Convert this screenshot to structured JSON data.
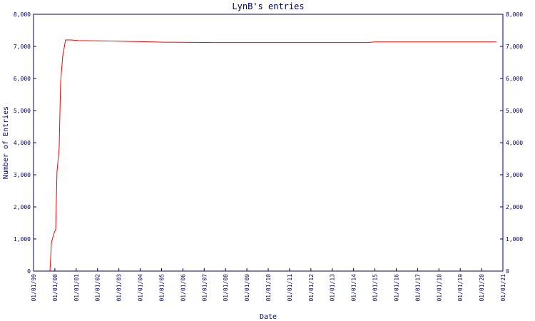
{
  "chart_data": {
    "type": "line",
    "title": "LynB's entries",
    "x_label": "Date",
    "y_label": "Number of Entries",
    "x": [
      1999.77,
      1999.84,
      1999.97,
      2000.04,
      2000.1,
      2000.2,
      2000.27,
      2000.37,
      2000.5,
      2000.77,
      2001.1,
      2002.45,
      2003.8,
      2005.1,
      2007.5,
      2014.65,
      2015.0,
      2020.7
    ],
    "values": [
      0,
      900,
      1200,
      1300,
      3100,
      3800,
      5900,
      6700,
      7200,
      7200,
      7180,
      7170,
      7150,
      7130,
      7120,
      7120,
      7140,
      7140
    ],
    "color": "#ff0000",
    "xlim": [
      1999,
      2021
    ],
    "xticks": [
      {
        "value": 1999,
        "label": "01/01/99"
      },
      {
        "value": 2000,
        "label": "01/01/00"
      },
      {
        "value": 2001,
        "label": "01/01/01"
      },
      {
        "value": 2002,
        "label": "01/01/02"
      },
      {
        "value": 2003,
        "label": "01/01/03"
      },
      {
        "value": 2004,
        "label": "01/01/04"
      },
      {
        "value": 2005,
        "label": "01/01/05"
      },
      {
        "value": 2006,
        "label": "01/01/06"
      },
      {
        "value": 2007,
        "label": "01/01/07"
      },
      {
        "value": 2008,
        "label": "01/01/08"
      },
      {
        "value": 2009,
        "label": "01/01/09"
      },
      {
        "value": 2010,
        "label": "01/01/10"
      },
      {
        "value": 2011,
        "label": "01/01/11"
      },
      {
        "value": 2012,
        "label": "01/01/12"
      },
      {
        "value": 2013,
        "label": "01/01/13"
      },
      {
        "value": 2014,
        "label": "01/01/14"
      },
      {
        "value": 2015,
        "label": "01/01/15"
      },
      {
        "value": 2016,
        "label": "01/01/16"
      },
      {
        "value": 2017,
        "label": "01/01/17"
      },
      {
        "value": 2018,
        "label": "01/01/18"
      },
      {
        "value": 2019,
        "label": "01/01/19"
      },
      {
        "value": 2020,
        "label": "01/01/20"
      },
      {
        "value": 2021,
        "label": "01/01/21"
      }
    ],
    "ylim": [
      0,
      8000
    ],
    "yticks": [
      0,
      {
        "value": 1000,
        "label": "1,000"
      },
      {
        "value": 2000,
        "label": "2,000"
      },
      {
        "value": 3000,
        "label": "3,000"
      },
      {
        "value": 4000,
        "label": "4,000"
      },
      {
        "value": 5000,
        "label": "5,000"
      },
      {
        "value": 6000,
        "label": "6,000"
      },
      {
        "value": 7000,
        "label": "7,000"
      },
      {
        "value": 8000,
        "label": "8,000"
      }
    ]
  }
}
